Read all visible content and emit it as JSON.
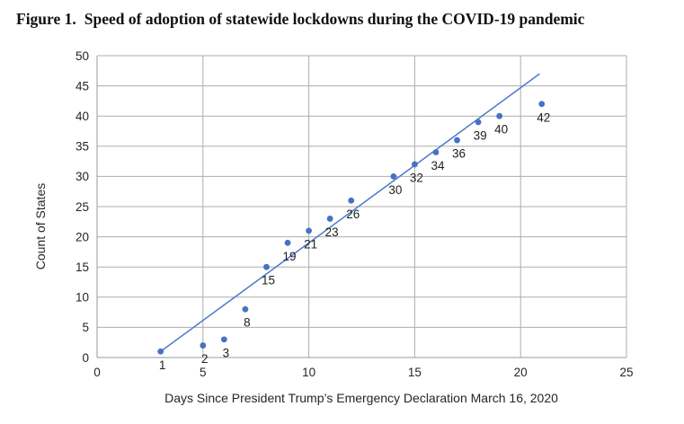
{
  "figure": {
    "label": "Figure 1.",
    "title": "Speed of adoption of statewide lockdowns during the COVID-19 pandemic"
  },
  "chart_data": {
    "type": "scatter",
    "title": "Figure 1. Speed of adoption of statewide lockdowns during the COVID-19 pandemic",
    "xlabel": "Days Since President Trump’s Emergency Declaration March 16, 2020",
    "ylabel": "Count of States",
    "xlim": [
      0,
      25
    ],
    "ylim": [
      0,
      50
    ],
    "x_ticks": [
      0,
      5,
      10,
      15,
      20,
      25
    ],
    "y_ticks": [
      0,
      5,
      10,
      15,
      20,
      25,
      30,
      35,
      40,
      45,
      50
    ],
    "grid": true,
    "legend": "none",
    "points": [
      {
        "x": 3,
        "y": 1,
        "label": "1"
      },
      {
        "x": 5,
        "y": 2,
        "label": "2"
      },
      {
        "x": 6,
        "y": 3,
        "label": "3"
      },
      {
        "x": 7,
        "y": 8,
        "label": "8"
      },
      {
        "x": 8,
        "y": 15,
        "label": "15"
      },
      {
        "x": 9,
        "y": 19,
        "label": "19"
      },
      {
        "x": 10,
        "y": 21,
        "label": "21"
      },
      {
        "x": 11,
        "y": 23,
        "label": "23"
      },
      {
        "x": 12,
        "y": 26,
        "label": "26"
      },
      {
        "x": 14,
        "y": 30,
        "label": "30"
      },
      {
        "x": 15,
        "y": 32,
        "label": "32"
      },
      {
        "x": 16,
        "y": 34,
        "label": "34"
      },
      {
        "x": 17,
        "y": 36,
        "label": "36"
      },
      {
        "x": 18,
        "y": 39,
        "label": "39"
      },
      {
        "x": 19,
        "y": 40,
        "label": "40"
      },
      {
        "x": 21,
        "y": 42,
        "label": "42"
      }
    ],
    "trendline": {
      "x1": 3,
      "y1": 1,
      "x2": 20.9,
      "y2": 47
    },
    "colors": {
      "point": "#4472c4",
      "trend": "#4a7bc8",
      "grid": "#adadad",
      "axis": "#999999",
      "text": "#262626"
    }
  }
}
